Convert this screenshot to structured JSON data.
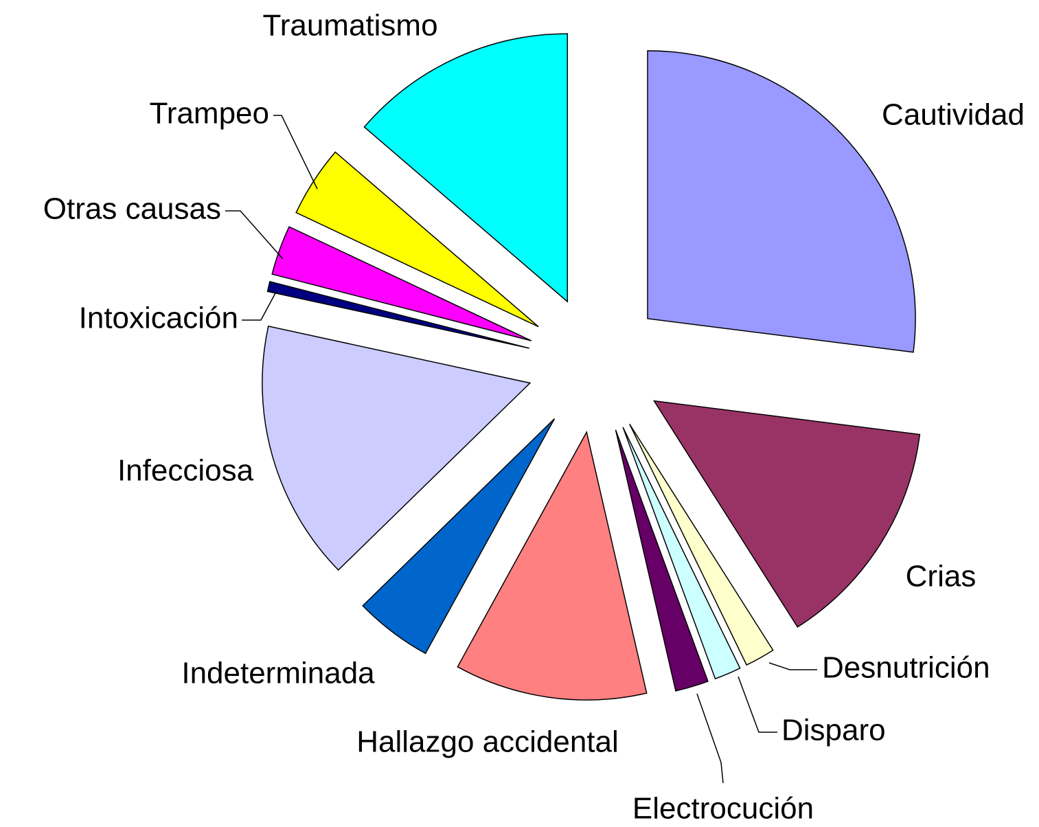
{
  "chart_data": {
    "type": "pie",
    "categories": [
      "Cautividad",
      "Crias",
      "Desnutrición",
      "Disparo",
      "Electrocución",
      "Hallazgo accidental",
      "Indeterminada",
      "Infecciosa",
      "Intoxicación",
      "Otras causas",
      "Trampeo",
      "Traumatismo"
    ],
    "values": [
      27,
      14,
      1.8,
      1.6,
      2,
      11.6,
      4.7,
      15.7,
      0.6,
      3,
      4.3,
      13.7
    ],
    "colors": [
      "#9999ff",
      "#993366",
      "#ffffcc",
      "#ccffff",
      "#660066",
      "#ff8080",
      "#0066cc",
      "#ccccff",
      "#000080",
      "#ff00ff",
      "#ffff00",
      "#00ffff"
    ]
  }
}
